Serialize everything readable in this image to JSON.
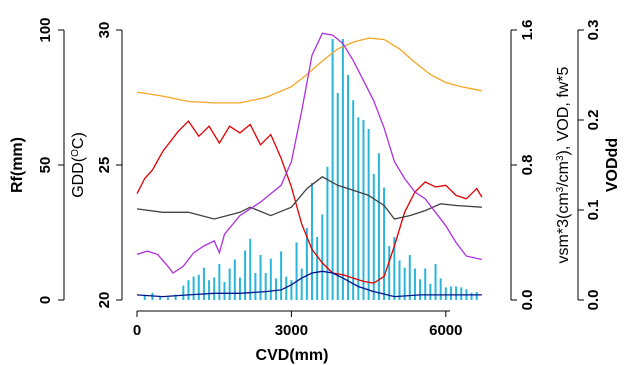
{
  "chart_data": {
    "type": "line",
    "xlabel": "CVD(mm)",
    "xlim": [
      0,
      6800
    ],
    "xticks": [
      0,
      3000,
      6000
    ],
    "axes": {
      "rf": {
        "label": "Rf(mm)",
        "range": [
          0,
          100
        ],
        "ticks": [
          0,
          50,
          100
        ],
        "tick_labels": [
          "0",
          "50",
          "100"
        ]
      },
      "gdd": {
        "label": "GDD(°C)",
        "label_base": "GDD(",
        "label_sup": "O",
        "label_unit": "C)",
        "range": [
          20,
          30
        ],
        "ticks": [
          20,
          25,
          30
        ],
        "tick_labels": [
          "20",
          "25",
          "30"
        ]
      },
      "vsm": {
        "label": "vsm*3(cm³/cm³), VOD, fw*5",
        "label_part1": "vsm*3(cm",
        "label_sup1": "3",
        "label_part2": "/cm",
        "label_sup2": "3",
        "label_part3": "), VOD, fw*5",
        "range": [
          0,
          1.6
        ],
        "ticks": [
          0,
          0.8,
          1.6
        ],
        "tick_labels": [
          "0.0",
          "0.8",
          "1.6"
        ]
      },
      "voddd": {
        "label": "VODdd",
        "range": [
          0,
          0.3
        ],
        "ticks": [
          0,
          0.1,
          0.2,
          0.3
        ],
        "tick_labels": [
          "0.0",
          "0.1",
          "0.2",
          "0.3"
        ]
      }
    },
    "series": [
      {
        "axis": "gdd",
        "color": "#f5a623",
        "x": [
          0,
          500,
          1000,
          1500,
          2000,
          2500,
          3000,
          3300,
          3600,
          3900,
          4200,
          4500,
          4800,
          5100,
          5400,
          5700,
          6000,
          6300,
          6700
        ],
        "y": [
          27.7,
          27.55,
          27.35,
          27.3,
          27.3,
          27.5,
          27.9,
          28.35,
          28.85,
          29.3,
          29.55,
          29.7,
          29.65,
          29.3,
          28.8,
          28.35,
          28.05,
          27.9,
          27.75
        ]
      },
      {
        "axis": "vsm",
        "color": "#e00000",
        "x": [
          0,
          150,
          300,
          500,
          800,
          1000,
          1200,
          1400,
          1600,
          1800,
          2000,
          2200,
          2400,
          2600,
          2800,
          3000,
          3200,
          3400,
          3600,
          3800,
          4000,
          4200,
          4400,
          4600,
          4800,
          5000,
          5200,
          5400,
          5600,
          5800,
          6000,
          6200,
          6400,
          6600,
          6700
        ],
        "y": [
          0.63,
          0.72,
          0.77,
          0.88,
          1.0,
          1.06,
          0.97,
          1.03,
          0.93,
          1.03,
          0.99,
          1.04,
          0.92,
          0.98,
          0.84,
          0.67,
          0.45,
          0.3,
          0.22,
          0.16,
          0.15,
          0.13,
          0.11,
          0.1,
          0.14,
          0.32,
          0.52,
          0.64,
          0.7,
          0.67,
          0.68,
          0.62,
          0.6,
          0.66,
          0.61
        ]
      },
      {
        "axis": "vsm",
        "color": "#404040",
        "x": [
          0,
          500,
          1000,
          1500,
          2000,
          2200,
          2600,
          3000,
          3300,
          3600,
          3900,
          4200,
          4500,
          4800,
          5000,
          5300,
          5600,
          5900,
          6200,
          6700
        ],
        "y": [
          0.54,
          0.52,
          0.52,
          0.48,
          0.52,
          0.55,
          0.5,
          0.55,
          0.66,
          0.73,
          0.68,
          0.65,
          0.62,
          0.56,
          0.48,
          0.5,
          0.53,
          0.57,
          0.56,
          0.55
        ]
      },
      {
        "axis": "vsm",
        "color": "#b030e0",
        "x": [
          0,
          200,
          400,
          600,
          700,
          900,
          1100,
          1300,
          1500,
          1600,
          1700,
          2000,
          2400,
          2800,
          3000,
          3200,
          3400,
          3600,
          3800,
          4000,
          4200,
          4400,
          4600,
          4800,
          5000,
          5200,
          5400,
          5600,
          5800,
          6000,
          6200,
          6400,
          6700
        ],
        "y": [
          0.27,
          0.29,
          0.27,
          0.2,
          0.16,
          0.2,
          0.28,
          0.32,
          0.35,
          0.28,
          0.39,
          0.5,
          0.58,
          0.68,
          0.82,
          1.12,
          1.45,
          1.58,
          1.57,
          1.52,
          1.42,
          1.3,
          1.18,
          1.02,
          0.82,
          0.72,
          0.64,
          0.6,
          0.52,
          0.44,
          0.34,
          0.26,
          0.24
        ]
      },
      {
        "axis": "vsm",
        "color": "#00158a",
        "x": [
          0,
          500,
          1000,
          1500,
          2000,
          2500,
          2800,
          3000,
          3200,
          3400,
          3600,
          3800,
          4000,
          4300,
          4600,
          5000,
          5500,
          6000,
          6700
        ],
        "y": [
          0.03,
          0.02,
          0.03,
          0.04,
          0.04,
          0.05,
          0.06,
          0.09,
          0.13,
          0.16,
          0.17,
          0.16,
          0.13,
          0.08,
          0.05,
          0.02,
          0.03,
          0.03,
          0.03
        ]
      }
    ],
    "bars": {
      "axis": "voddd",
      "color": "#29b6d9",
      "x": [
        150,
        300,
        450,
        600,
        750,
        900,
        1000,
        1100,
        1200,
        1300,
        1400,
        1500,
        1600,
        1700,
        1800,
        1900,
        2000,
        2100,
        2200,
        2300,
        2400,
        2500,
        2600,
        2700,
        2800,
        2900,
        3000,
        3100,
        3200,
        3300,
        3400,
        3500,
        3600,
        3700,
        3800,
        3900,
        4000,
        4100,
        4200,
        4300,
        4400,
        4500,
        4600,
        4700,
        4800,
        4900,
        5000,
        5100,
        5200,
        5300,
        5400,
        5500,
        5600,
        5700,
        5800,
        5900,
        6000,
        6100,
        6200,
        6300,
        6400,
        6500,
        6600
      ],
      "y": [
        0.005,
        0.008,
        0.004,
        0.003,
        0.006,
        0.016,
        0.022,
        0.026,
        0.028,
        0.036,
        0.022,
        0.025,
        0.04,
        0.02,
        0.035,
        0.045,
        0.025,
        0.055,
        0.068,
        0.03,
        0.05,
        0.03,
        0.046,
        0.024,
        0.054,
        0.026,
        0.022,
        0.064,
        0.035,
        0.08,
        0.13,
        0.07,
        0.095,
        0.148,
        0.29,
        0.23,
        0.29,
        0.25,
        0.222,
        0.203,
        0.2,
        0.19,
        0.14,
        0.163,
        0.125,
        0.06,
        0.07,
        0.044,
        0.036,
        0.05,
        0.035,
        0.023,
        0.035,
        0.018,
        0.04,
        0.024,
        0.014,
        0.015,
        0.015,
        0.014,
        0.012,
        0.008,
        0.009
      ]
    }
  }
}
